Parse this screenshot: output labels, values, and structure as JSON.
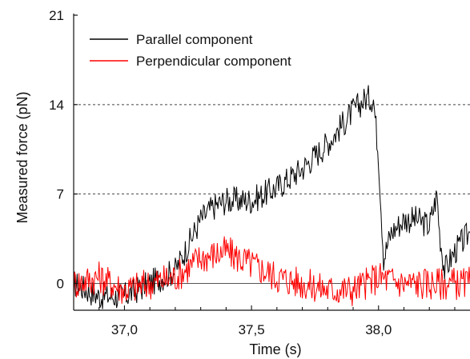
{
  "chart_data": {
    "type": "line",
    "xlabel": "Time (s)",
    "ylabel": "Measured force (pN)",
    "xlim": [
      36.8,
      38.36
    ],
    "ylim": [
      -2.1,
      21
    ],
    "x_ticks": [
      37.0,
      37.5,
      38.0
    ],
    "x_tick_labels": [
      "37,0",
      "37,5",
      "38,0"
    ],
    "y_ticks": [
      0,
      7,
      14,
      21
    ],
    "y_tick_labels": [
      "0",
      "7",
      "14",
      "21"
    ],
    "grid": "dashed horizontal lines at y = 7 and y = 14; solid line at y = 0",
    "legend_position": "top-left",
    "series": [
      {
        "name": "Parallel component",
        "color": "#000000",
        "x": [
          36.8,
          36.9,
          37.0,
          37.1,
          37.2,
          37.25,
          37.3,
          37.35,
          37.4,
          37.5,
          37.6,
          37.7,
          37.8,
          37.9,
          37.95,
          37.98,
          38.0,
          38.02,
          38.05,
          38.1,
          38.15,
          38.2,
          38.23,
          38.24,
          38.26,
          38.3,
          38.36
        ],
        "values": [
          0,
          -1,
          -1,
          0,
          1,
          3,
          5,
          6,
          6.5,
          6.5,
          7.5,
          9,
          11,
          13.5,
          14.5,
          14.5,
          10,
          2,
          4,
          5,
          5,
          4.5,
          7,
          4,
          1,
          2.5,
          4
        ]
      },
      {
        "name": "Perpendicular component",
        "color": "#ff0000",
        "x": [
          36.8,
          36.9,
          37.0,
          37.1,
          37.2,
          37.3,
          37.4,
          37.5,
          37.6,
          37.7,
          37.8,
          37.9,
          38.0,
          38.1,
          38.2,
          38.3,
          38.36
        ],
        "values": [
          0,
          0.5,
          -0.5,
          0,
          0.5,
          2,
          2.5,
          1.5,
          0.5,
          0,
          -0.5,
          -0.5,
          0.5,
          0,
          0,
          0,
          0
        ]
      }
    ]
  }
}
